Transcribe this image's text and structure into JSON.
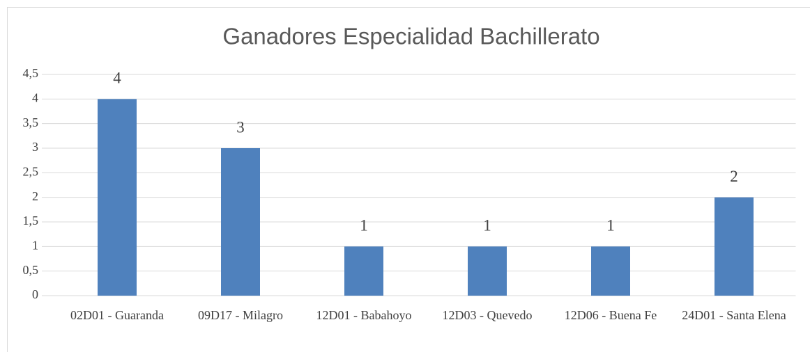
{
  "chart_data": {
    "type": "bar",
    "title": "Ganadores Especialidad Bachillerato",
    "categories": [
      "02D01 - Guaranda",
      "09D17 - Milagro",
      "12D01 - Babahoyo",
      "12D03 - Quevedo",
      "12D06 - Buena Fe",
      "24D01 - Santa Elena"
    ],
    "values": [
      4,
      3,
      1,
      1,
      1,
      2
    ],
    "color": "#4f81bd",
    "ylim": [
      0,
      4.5
    ],
    "yticks": [
      0,
      {
        "value": 0.5,
        "label": "0,5"
      },
      1,
      {
        "value": 1.5,
        "label": "1,5"
      },
      2,
      {
        "value": 2.5,
        "label": "2,5"
      },
      3,
      {
        "value": 3.5,
        "label": "3,5"
      },
      4,
      {
        "value": 4.5,
        "label": "4,5"
      }
    ],
    "grid": true
  }
}
